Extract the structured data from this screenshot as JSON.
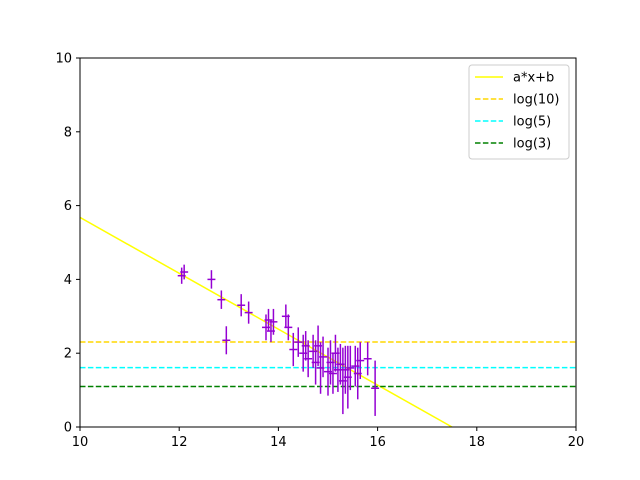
{
  "chart_data": {
    "type": "scatter",
    "xlim": [
      10,
      20
    ],
    "ylim": [
      0,
      10
    ],
    "xticks": [
      10,
      12,
      14,
      16,
      18,
      20
    ],
    "yticks": [
      0,
      2,
      4,
      6,
      8,
      10
    ],
    "grid": false,
    "legend_placement": "top-right",
    "series": [
      {
        "name": "a*x+b",
        "kind": "line",
        "style": "solid",
        "color": "#ffff00",
        "x": [
          10,
          17.5
        ],
        "y": [
          5.68,
          0
        ]
      },
      {
        "name": "log(10)",
        "kind": "hline",
        "style": "dashed",
        "color": "#ffd700",
        "y": 2.303
      },
      {
        "name": "log(5)",
        "kind": "hline",
        "style": "dashed",
        "color": "#00ffff",
        "y": 1.609
      },
      {
        "name": "log(3)",
        "kind": "hline",
        "style": "dashed",
        "color": "#008000",
        "y": 1.099
      }
    ],
    "points": {
      "color": "#9400d3",
      "data": [
        {
          "x": 12.05,
          "y": 4.1,
          "xerr": 0.08,
          "yerr": 0.22
        },
        {
          "x": 12.1,
          "y": 4.2,
          "xerr": 0.08,
          "yerr": 0.2
        },
        {
          "x": 12.65,
          "y": 4.0,
          "xerr": 0.08,
          "yerr": 0.25
        },
        {
          "x": 12.85,
          "y": 3.45,
          "xerr": 0.08,
          "yerr": 0.25
        },
        {
          "x": 12.95,
          "y": 2.35,
          "xerr": 0.08,
          "yerr": 0.38
        },
        {
          "x": 13.25,
          "y": 3.3,
          "xerr": 0.08,
          "yerr": 0.3
        },
        {
          "x": 13.4,
          "y": 3.1,
          "xerr": 0.08,
          "yerr": 0.3
        },
        {
          "x": 13.75,
          "y": 2.7,
          "xerr": 0.08,
          "yerr": 0.35
        },
        {
          "x": 13.8,
          "y": 2.9,
          "xerr": 0.08,
          "yerr": 0.3
        },
        {
          "x": 13.85,
          "y": 2.6,
          "xerr": 0.08,
          "yerr": 0.3
        },
        {
          "x": 13.9,
          "y": 2.85,
          "xerr": 0.08,
          "yerr": 0.35
        },
        {
          "x": 14.15,
          "y": 3.0,
          "xerr": 0.08,
          "yerr": 0.32
        },
        {
          "x": 14.2,
          "y": 2.7,
          "xerr": 0.08,
          "yerr": 0.35
        },
        {
          "x": 14.3,
          "y": 2.1,
          "xerr": 0.08,
          "yerr": 0.45
        },
        {
          "x": 14.4,
          "y": 2.3,
          "xerr": 0.08,
          "yerr": 0.4
        },
        {
          "x": 14.5,
          "y": 2.0,
          "xerr": 0.08,
          "yerr": 0.5
        },
        {
          "x": 14.55,
          "y": 2.2,
          "xerr": 0.08,
          "yerr": 0.4
        },
        {
          "x": 14.6,
          "y": 1.85,
          "xerr": 0.08,
          "yerr": 0.5
        },
        {
          "x": 14.7,
          "y": 2.05,
          "xerr": 0.08,
          "yerr": 0.45
        },
        {
          "x": 14.75,
          "y": 1.75,
          "xerr": 0.08,
          "yerr": 0.6
        },
        {
          "x": 14.8,
          "y": 2.2,
          "xerr": 0.08,
          "yerr": 0.55
        },
        {
          "x": 14.85,
          "y": 1.6,
          "xerr": 0.08,
          "yerr": 0.7
        },
        {
          "x": 14.9,
          "y": 1.9,
          "xerr": 0.08,
          "yerr": 0.55
        },
        {
          "x": 15.0,
          "y": 1.5,
          "xerr": 0.08,
          "yerr": 0.65
        },
        {
          "x": 15.05,
          "y": 1.75,
          "xerr": 0.08,
          "yerr": 0.6
        },
        {
          "x": 15.1,
          "y": 1.45,
          "xerr": 0.08,
          "yerr": 0.55
        },
        {
          "x": 15.15,
          "y": 2.0,
          "xerr": 0.08,
          "yerr": 0.5
        },
        {
          "x": 15.2,
          "y": 1.55,
          "xerr": 0.08,
          "yerr": 0.6
        },
        {
          "x": 15.25,
          "y": 1.7,
          "xerr": 0.08,
          "yerr": 0.55
        },
        {
          "x": 15.3,
          "y": 1.25,
          "xerr": 0.08,
          "yerr": 0.9
        },
        {
          "x": 15.35,
          "y": 1.55,
          "xerr": 0.08,
          "yerr": 0.65
        },
        {
          "x": 15.4,
          "y": 1.35,
          "xerr": 0.08,
          "yerr": 0.85
        },
        {
          "x": 15.45,
          "y": 1.6,
          "xerr": 0.08,
          "yerr": 0.6
        },
        {
          "x": 15.55,
          "y": 1.65,
          "xerr": 0.08,
          "yerr": 0.55
        },
        {
          "x": 15.6,
          "y": 1.45,
          "xerr": 0.08,
          "yerr": 0.7
        },
        {
          "x": 15.65,
          "y": 1.8,
          "xerr": 0.08,
          "yerr": 0.5
        },
        {
          "x": 15.8,
          "y": 1.85,
          "xerr": 0.08,
          "yerr": 0.45
        },
        {
          "x": 15.95,
          "y": 1.05,
          "xerr": 0.08,
          "yerr": 0.75
        }
      ]
    }
  }
}
